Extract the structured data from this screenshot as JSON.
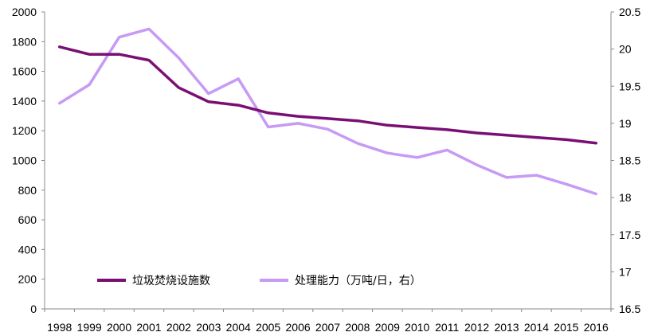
{
  "chart_data": {
    "type": "line",
    "title": "",
    "xlabel": "",
    "x": [
      "1998",
      "1999",
      "2000",
      "2001",
      "2002",
      "2003",
      "2004",
      "2005",
      "2006",
      "2007",
      "2008",
      "2009",
      "2010",
      "2011",
      "2012",
      "2013",
      "2014",
      "2015",
      "2016"
    ],
    "y_left": {
      "min": 0,
      "max": 2000,
      "ticks": [
        "0",
        "200",
        "400",
        "600",
        "800",
        "1000",
        "1200",
        "1400",
        "1600",
        "1800",
        "2000"
      ]
    },
    "y_right": {
      "min": 16.5,
      "max": 20.5,
      "ticks": [
        "16.5",
        "17",
        "17.5",
        "18",
        "18.5",
        "19",
        "19.5",
        "20",
        "20.5"
      ]
    },
    "legend_position": "bottom-left",
    "series": [
      {
        "name": "垃圾焚烧设施数",
        "axis": "left",
        "color": "#7a0f73",
        "values": [
          1765,
          1715,
          1715,
          1675,
          1490,
          1395,
          1372,
          1320,
          1297,
          1282,
          1267,
          1237,
          1222,
          1207,
          1185,
          1170,
          1155,
          1140,
          1117
        ]
      },
      {
        "name": "处理能力（万吨/日，右）",
        "axis": "right",
        "color": "#c69af5",
        "values": [
          19.27,
          19.52,
          20.16,
          20.27,
          19.88,
          19.4,
          19.6,
          18.95,
          19.0,
          18.92,
          18.73,
          18.6,
          18.54,
          18.64,
          18.44,
          18.27,
          18.3,
          18.18,
          18.05
        ]
      }
    ]
  }
}
